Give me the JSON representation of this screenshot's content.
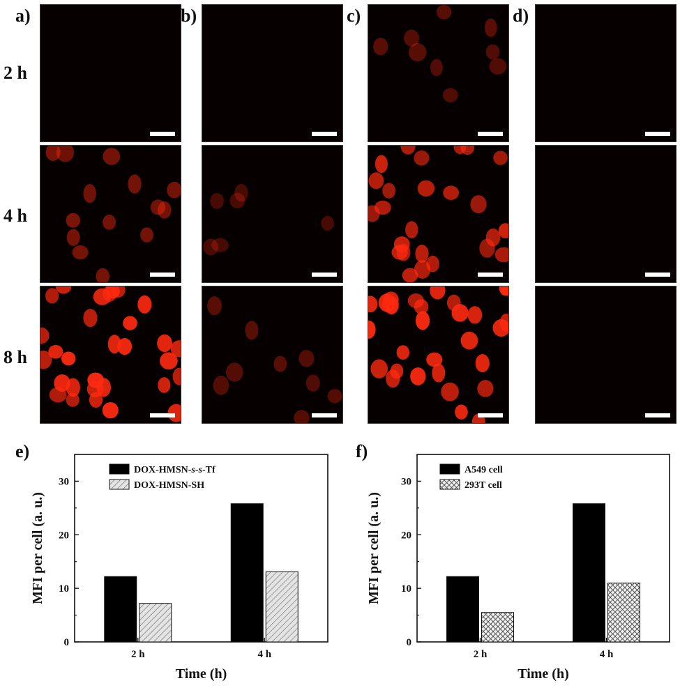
{
  "figure": {
    "panel_labels": {
      "a": "a)",
      "b": "b)",
      "c": "c)",
      "d": "d)",
      "e": "e)",
      "f": "f)"
    },
    "row_labels": [
      "2 h",
      "4 h",
      "8 h"
    ],
    "micrograph_intensity": {
      "a": [
        0.0,
        0.35,
        1.0
      ],
      "b": [
        0.0,
        0.02,
        0.12
      ],
      "c": [
        0.12,
        0.8,
        1.0
      ],
      "d": [
        0.0,
        0.0,
        0.0
      ]
    },
    "colors": {
      "fluorescence": "#ff2a10",
      "background": "#070000"
    }
  },
  "chart_data": [
    {
      "type": "bar",
      "panel": "e)",
      "categories": [
        "2 h",
        "4 h"
      ],
      "series": [
        {
          "name": "DOX-HMSN-s-s-Tf",
          "values": [
            12.2,
            25.8
          ],
          "fill": "solid",
          "color": "#000000"
        },
        {
          "name": "DOX-HMSN-SH",
          "values": [
            7.2,
            13.1
          ],
          "fill": "diagonal-hatch",
          "color": "#cfcfcf"
        }
      ],
      "legend_text": [
        {
          "parts": [
            "DOX-HMSN-",
            "s",
            "-",
            "s",
            "-Tf"
          ],
          "italic": [
            false,
            true,
            false,
            true,
            false
          ]
        },
        {
          "parts": [
            "DOX-HMSN-SH"
          ],
          "italic": [
            false
          ]
        }
      ],
      "xlabel": "Time (h)",
      "ylabel": "MFI per cell (a. u.)",
      "ylim": [
        0,
        35
      ],
      "yticks": [
        0,
        10,
        20,
        30
      ],
      "legend_position": "top-left"
    },
    {
      "type": "bar",
      "panel": "f)",
      "categories": [
        "2 h",
        "4 h"
      ],
      "series": [
        {
          "name": "A549 cell",
          "values": [
            12.2,
            25.8
          ],
          "fill": "solid",
          "color": "#000000"
        },
        {
          "name": "293T cell",
          "values": [
            5.5,
            11.0
          ],
          "fill": "cross-hatch",
          "color": "#e0e0e0"
        }
      ],
      "legend_text": [
        {
          "parts": [
            "A549 cell"
          ],
          "italic": [
            false
          ]
        },
        {
          "parts": [
            "293T cell"
          ],
          "italic": [
            false
          ]
        }
      ],
      "xlabel": "Time (h)",
      "ylabel": "MFI per cell (a. u.)",
      "ylim": [
        0,
        35
      ],
      "yticks": [
        0,
        10,
        20,
        30
      ],
      "legend_position": "top-left"
    }
  ]
}
